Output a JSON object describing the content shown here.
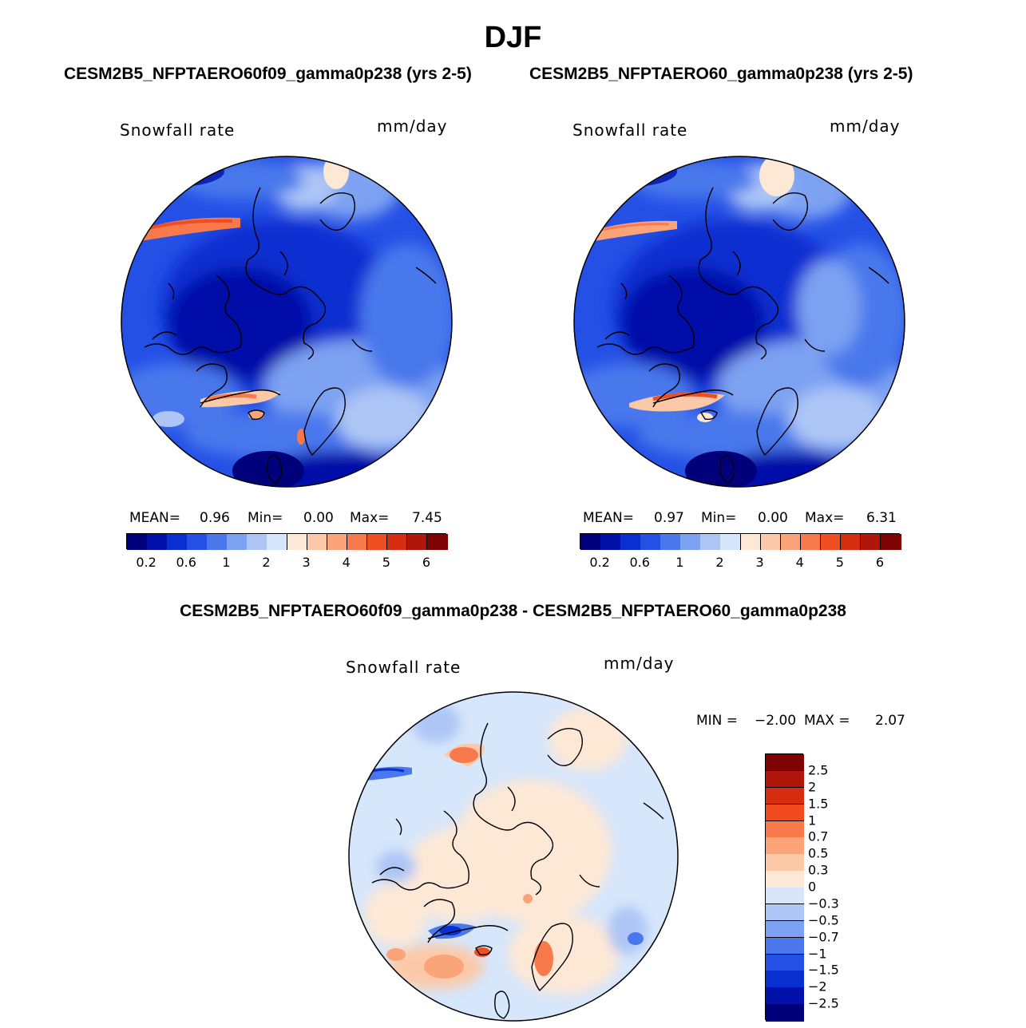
{
  "title": "DJF",
  "panels": [
    {
      "subtitle": "CESM2B5_NFPTAERO60f09_gamma0p238 (yrs 2-5)",
      "variable": "Snowfall rate",
      "units": "mm/day",
      "stats": {
        "mean_label": "MEAN=",
        "mean": "0.96",
        "min_label": "Min=",
        "min": "0.00",
        "max_label": "Max=",
        "max": "7.45"
      }
    },
    {
      "subtitle": "CESM2B5_NFPTAERO60_gamma0p238 (yrs 2-5)",
      "variable": "Snowfall rate",
      "units": "mm/day",
      "stats": {
        "mean_label": "MEAN=",
        "mean": "0.97",
        "min_label": "Min=",
        "min": "0.00",
        "max_label": "Max=",
        "max": "6.31"
      }
    },
    {
      "subtitle": "CESM2B5_NFPTAERO60f09_gamma0p238 - CESM2B5_NFPTAERO60_gamma0p238",
      "variable": "Snowfall rate",
      "units": "mm/day",
      "stats": {
        "min_label": "MIN =",
        "min": "−2.00",
        "max_label": "MAX =",
        "max": "2.07"
      }
    }
  ],
  "colorbar_main": {
    "colors": [
      "#00007a",
      "#0010a8",
      "#0a2fd0",
      "#2450e6",
      "#4a78ec",
      "#7da2f2",
      "#adc6f6",
      "#d6e6fb",
      "#fde8d6",
      "#fcc9a8",
      "#fba47a",
      "#f87a4c",
      "#ef4d22",
      "#d62c0f",
      "#b0170a",
      "#7d0303"
    ],
    "labels": [
      "0.2",
      "0.6",
      "1",
      "2",
      "3",
      "4",
      "5",
      "6"
    ]
  },
  "colorbar_diff": {
    "colors": [
      "#7d0303",
      "#b0170a",
      "#d62c0f",
      "#f04a1e",
      "#f87a4c",
      "#fba47a",
      "#fcc9a8",
      "#fde8d6",
      "#d6e6fb",
      "#adc6f6",
      "#7da2f2",
      "#4a78ec",
      "#2450e6",
      "#0a2fd0",
      "#0010a8",
      "#00007a"
    ],
    "labels": [
      "2.5",
      "2",
      "1.5",
      "1",
      "0.7",
      "0.5",
      "0.3",
      "0",
      "−0.3",
      "−0.5",
      "−0.7",
      "−1",
      "−1.5",
      "−2",
      "−2.5"
    ]
  }
}
